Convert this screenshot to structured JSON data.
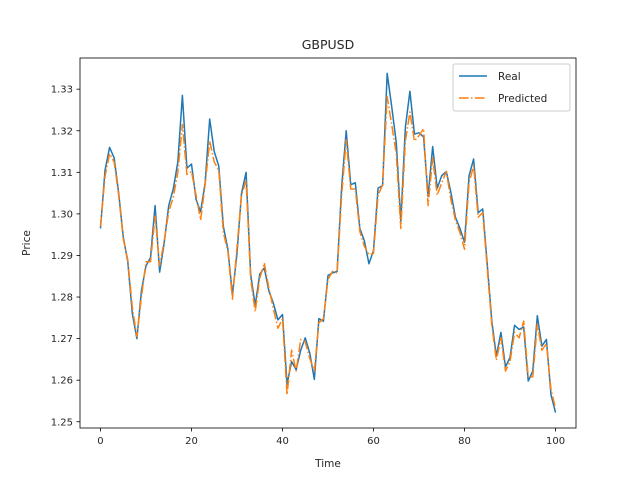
{
  "chart_data": {
    "type": "line",
    "title": "GBPUSD",
    "xlabel": "Time",
    "ylabel": "Price",
    "xlim": [
      -4.5,
      104.5
    ],
    "ylim": [
      1.2485,
      1.3375
    ],
    "xticks": [
      0,
      20,
      40,
      60,
      80,
      100
    ],
    "yticks": [
      1.25,
      1.26,
      1.27,
      1.28,
      1.29,
      1.3,
      1.31,
      1.32,
      1.33
    ],
    "legend_position": "upper right",
    "grid": false,
    "series": [
      {
        "name": "Real",
        "color": "#1f77b4",
        "linestyle": "solid",
        "x": [
          0,
          1,
          2,
          3,
          4,
          5,
          6,
          7,
          8,
          9,
          10,
          11,
          12,
          13,
          14,
          15,
          16,
          17,
          18,
          19,
          20,
          21,
          22,
          23,
          24,
          25,
          26,
          27,
          28,
          29,
          30,
          31,
          32,
          33,
          34,
          35,
          36,
          37,
          38,
          39,
          40,
          41,
          42,
          43,
          44,
          45,
          46,
          47,
          48,
          49,
          50,
          51,
          52,
          53,
          54,
          55,
          56,
          57,
          58,
          59,
          60,
          61,
          62,
          63,
          64,
          65,
          66,
          67,
          68,
          69,
          70,
          71,
          72,
          73,
          74,
          75,
          76,
          77,
          78,
          79,
          80,
          81,
          82,
          83,
          84,
          85,
          86,
          87,
          88,
          89,
          90,
          91,
          92,
          93,
          94,
          95,
          96,
          97,
          98,
          99,
          100
        ],
        "values": [
          1.2965,
          1.3105,
          1.316,
          1.3135,
          1.305,
          1.2945,
          1.2885,
          1.276,
          1.27,
          1.2815,
          1.2875,
          1.2895,
          1.302,
          1.286,
          1.293,
          1.302,
          1.306,
          1.3125,
          1.3285,
          1.311,
          1.312,
          1.3035,
          1.3005,
          1.3075,
          1.3228,
          1.315,
          1.3115,
          1.297,
          1.2915,
          1.2805,
          1.2905,
          1.305,
          1.31,
          1.2855,
          1.278,
          1.2855,
          1.287,
          1.2815,
          1.2785,
          1.2745,
          1.2758,
          1.259,
          1.2645,
          1.2625,
          1.2672,
          1.2702,
          1.2665,
          1.2602,
          1.2748,
          1.2742,
          1.2852,
          1.2858,
          1.2862,
          1.3065,
          1.32,
          1.307,
          1.3075,
          1.2965,
          1.2935,
          1.288,
          1.2912,
          1.3062,
          1.3068,
          1.3338,
          1.3258,
          1.3172,
          1.2982,
          1.3208,
          1.3295,
          1.3192,
          1.3195,
          1.3185,
          1.3042,
          1.3162,
          1.3062,
          1.3092,
          1.3102,
          1.3052,
          1.2992,
          1.2965,
          1.2932,
          1.3092,
          1.3132,
          1.3003,
          1.3012,
          1.2878,
          1.2742,
          1.2658,
          1.2715,
          1.2632,
          1.2655,
          1.2732,
          1.2722,
          1.2728,
          1.2598,
          1.2622,
          1.2755,
          1.2682,
          1.2698,
          1.2565,
          1.2522
        ]
      },
      {
        "name": "Predicted",
        "color": "#ff7f0e",
        "linestyle": "dashdot",
        "x": [
          0,
          1,
          2,
          3,
          4,
          5,
          6,
          7,
          8,
          9,
          10,
          11,
          12,
          13,
          14,
          15,
          16,
          17,
          18,
          19,
          20,
          21,
          22,
          23,
          24,
          25,
          26,
          27,
          28,
          29,
          30,
          31,
          32,
          33,
          34,
          35,
          36,
          37,
          38,
          39,
          40,
          41,
          42,
          43,
          44,
          45,
          46,
          47,
          48,
          49,
          50,
          51,
          52,
          53,
          54,
          55,
          56,
          57,
          58,
          59,
          60,
          61,
          62,
          63,
          64,
          65,
          66,
          67,
          68,
          69,
          70,
          71,
          72,
          73,
          74,
          75,
          76,
          77,
          78,
          79,
          80,
          81,
          82,
          83,
          84,
          85,
          86,
          87,
          88,
          89,
          90,
          91,
          92,
          93,
          94,
          95,
          96,
          97,
          98,
          99,
          100
        ],
        "values": [
          1.297,
          1.309,
          1.3145,
          1.3125,
          1.3045,
          1.294,
          1.289,
          1.2775,
          1.2705,
          1.28,
          1.2885,
          1.2885,
          1.2995,
          1.2875,
          1.2935,
          1.3005,
          1.304,
          1.31,
          1.3215,
          1.3095,
          1.3102,
          1.3045,
          1.2985,
          1.307,
          1.3175,
          1.3125,
          1.3105,
          1.2955,
          1.291,
          1.2795,
          1.292,
          1.3045,
          1.308,
          1.2845,
          1.2765,
          1.2845,
          1.2882,
          1.2822,
          1.2772,
          1.2725,
          1.2748,
          1.2565,
          1.2672,
          1.2622,
          1.2698,
          1.2692,
          1.2652,
          1.2622,
          1.2738,
          1.2748,
          1.2842,
          1.2862,
          1.2858,
          1.3045,
          1.3178,
          1.306,
          1.306,
          1.2958,
          1.2922,
          1.2902,
          1.2905,
          1.3045,
          1.307,
          1.3282,
          1.3215,
          1.3145,
          1.2965,
          1.3175,
          1.3245,
          1.3175,
          1.3188,
          1.3205,
          1.302,
          1.3135,
          1.3045,
          1.3075,
          1.3102,
          1.3035,
          1.2985,
          1.2955,
          1.2915,
          1.3075,
          1.3115,
          1.2992,
          1.3003,
          1.2868,
          1.2732,
          1.2648,
          1.2702,
          1.2622,
          1.2645,
          1.2715,
          1.2702,
          1.2742,
          1.2608,
          1.2608,
          1.2735,
          1.2672,
          1.2688,
          1.2578,
          1.2532
        ]
      }
    ]
  }
}
